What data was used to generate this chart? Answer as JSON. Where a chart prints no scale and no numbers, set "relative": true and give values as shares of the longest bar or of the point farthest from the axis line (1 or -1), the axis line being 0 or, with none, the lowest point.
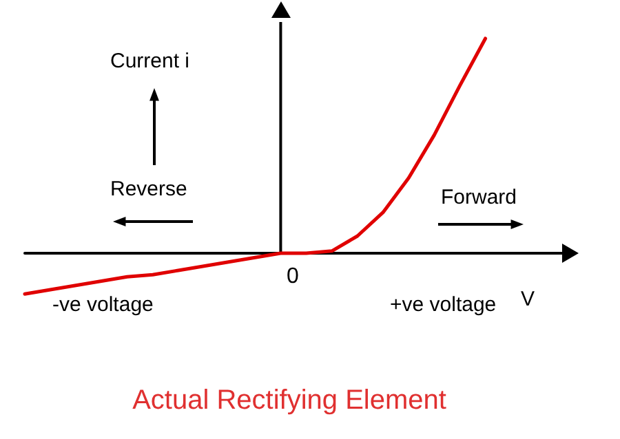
{
  "chart_data": {
    "type": "line",
    "title": "Actual Rectifying Element",
    "xlabel": "V",
    "ylabel": "Current i",
    "annotations": [
      "Reverse",
      "Forward",
      "-ve voltage",
      "+ve voltage",
      "0"
    ],
    "relative": true,
    "marker": "none",
    "categories": [
      null,
      null,
      null,
      null,
      null,
      null,
      null,
      null,
      null,
      null,
      null,
      null,
      null,
      null,
      null,
      null,
      null,
      null,
      null,
      null,
      null,
      null
    ],
    "series": [
      {
        "color": "#e00000",
        "values": [
          -0.19,
          -0.17,
          -0.15,
          -0.13,
          -0.11,
          -0.1,
          -0.08,
          -0.06,
          -0.04,
          -0.02,
          0,
          0,
          0.01,
          0.08,
          0.19,
          0.35,
          0.55,
          0.78,
          1,
          null,
          null,
          null
        ]
      }
    ]
  }
}
